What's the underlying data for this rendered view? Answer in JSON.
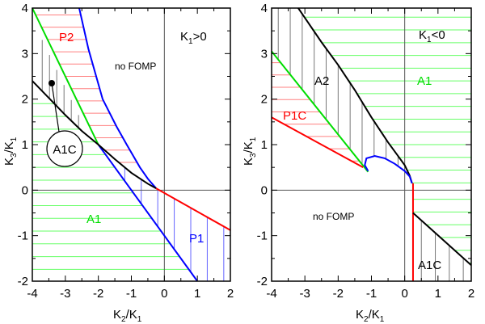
{
  "chart_data": [
    {
      "type": "diagram",
      "panel": "left",
      "condition": {
        "main": "K",
        "sub": "1",
        "rest": ">0"
      },
      "xlabel": {
        "a": "K",
        "as": "2",
        "b": "/K",
        "bs": "1"
      },
      "ylabel": {
        "a": "K",
        "as": "3",
        "b": "/K",
        "bs": "1"
      },
      "xlim": [
        -4,
        2
      ],
      "ylim": [
        -2,
        4
      ],
      "xticks": [
        "-4",
        "-3",
        "-2",
        "-1",
        "0",
        "1",
        "2"
      ],
      "yticks": [
        "-2",
        "-1",
        "0",
        "1",
        "2",
        "3",
        "4"
      ],
      "regions": [
        {
          "label": "P2",
          "color": "#ff0000",
          "hatch": "horizontal"
        },
        {
          "label": "no FOMP",
          "color": "#000000",
          "hatch": "none"
        },
        {
          "label": "A1",
          "color": "#00dd00",
          "hatch": "horizontal"
        },
        {
          "label": "P1",
          "color": "#0000ff",
          "hatch": "vertical"
        },
        {
          "label": "A1C",
          "color": "#000000",
          "hatch": "vertical",
          "callout": true
        }
      ],
      "boundaries": [
        {
          "color": "#00dd00",
          "points": [
            [
              -4,
              4
            ],
            [
              -2,
              1
            ]
          ]
        },
        {
          "color": "#0000ff",
          "points": [
            [
              -2.58,
              4
            ],
            [
              -2.3,
              3.1
            ],
            [
              -1.87,
              2
            ],
            [
              -1.45,
              1.4
            ],
            [
              -1.14,
              1
            ],
            [
              -0.74,
              0.5
            ],
            [
              -0.5,
              0.25
            ],
            [
              -0.25,
              0.04
            ]
          ]
        },
        {
          "color": "#0000ff",
          "points": [
            [
              -2,
              1
            ],
            [
              1,
              -2
            ]
          ]
        },
        {
          "color": "#000000",
          "points": [
            [
              -4,
              2.4
            ],
            [
              -3.4,
              1.95
            ],
            [
              -3,
              1.65
            ],
            [
              -2.5,
              1.3
            ],
            [
              -2,
              1
            ],
            [
              -1.5,
              0.68
            ],
            [
              -1,
              0.38
            ],
            [
              -0.5,
              0.14
            ],
            [
              -0.25,
              0.04
            ]
          ]
        },
        {
          "color": "#ff0000",
          "points": [
            [
              -0.25,
              0.04
            ],
            [
              2,
              -0.88
            ]
          ]
        }
      ]
    },
    {
      "type": "diagram",
      "panel": "right",
      "condition": {
        "main": "K",
        "sub": "1",
        "rest": "<0"
      },
      "xlabel": {
        "a": "K",
        "as": "2",
        "b": "/K",
        "bs": "1"
      },
      "ylabel": {
        "a": "K",
        "as": "3",
        "b": "/K",
        "bs": "1"
      },
      "xlim": [
        -4,
        2
      ],
      "ylim": [
        -2,
        4
      ],
      "xticks": [
        "-4",
        "-3",
        "-2",
        "-1",
        "0",
        "1",
        "2"
      ],
      "yticks": [
        "-2",
        "-1",
        "0",
        "1",
        "2",
        "3",
        "4"
      ],
      "regions": [
        {
          "label": "A2",
          "color": "#000000",
          "hatch": "vertical"
        },
        {
          "label": "A1",
          "color": "#00dd00",
          "hatch": "horizontal"
        },
        {
          "label": "P1C",
          "color": "#ff0000",
          "hatch": "horizontal"
        },
        {
          "label": "no FOMP",
          "color": "#000000",
          "hatch": "none"
        },
        {
          "label": "A1C",
          "color": "#000000",
          "hatch": "vertical"
        }
      ],
      "boundaries": [
        {
          "color": "#000000",
          "points": [
            [
              -3.2,
              4
            ],
            [
              -2.5,
              3.25
            ],
            [
              -2,
              2.75
            ],
            [
              -1.5,
              2.2
            ],
            [
              -1,
              1.6
            ],
            [
              -0.5,
              1.05
            ],
            [
              -0.2,
              0.75
            ],
            [
              0,
              0.55
            ],
            [
              0.15,
              0.32
            ],
            [
              0.22,
              0.15
            ]
          ]
        },
        {
          "color": "#00dd00",
          "points": [
            [
              -4,
              3.05
            ],
            [
              -1.1,
              0.4
            ]
          ]
        },
        {
          "color": "#ff0000",
          "points": [
            [
              -4,
              1.6
            ],
            [
              -1.25,
              0.5
            ]
          ]
        },
        {
          "color": "#0000ff",
          "points": [
            [
              -1.1,
              0.42
            ],
            [
              -1.2,
              0.55
            ],
            [
              -1.15,
              0.7
            ],
            [
              -0.9,
              0.75
            ],
            [
              -0.6,
              0.7
            ],
            [
              -0.3,
              0.58
            ],
            [
              0,
              0.42
            ],
            [
              0.15,
              0.3
            ],
            [
              0.22,
              0.15
            ]
          ]
        },
        {
          "color": "#ff0000",
          "points": [
            [
              0.25,
              0.15
            ],
            [
              0.25,
              -2
            ]
          ]
        },
        {
          "color": "#000000",
          "points": [
            [
              0.25,
              -0.5
            ],
            [
              2,
              -1.65
            ]
          ]
        }
      ]
    }
  ]
}
